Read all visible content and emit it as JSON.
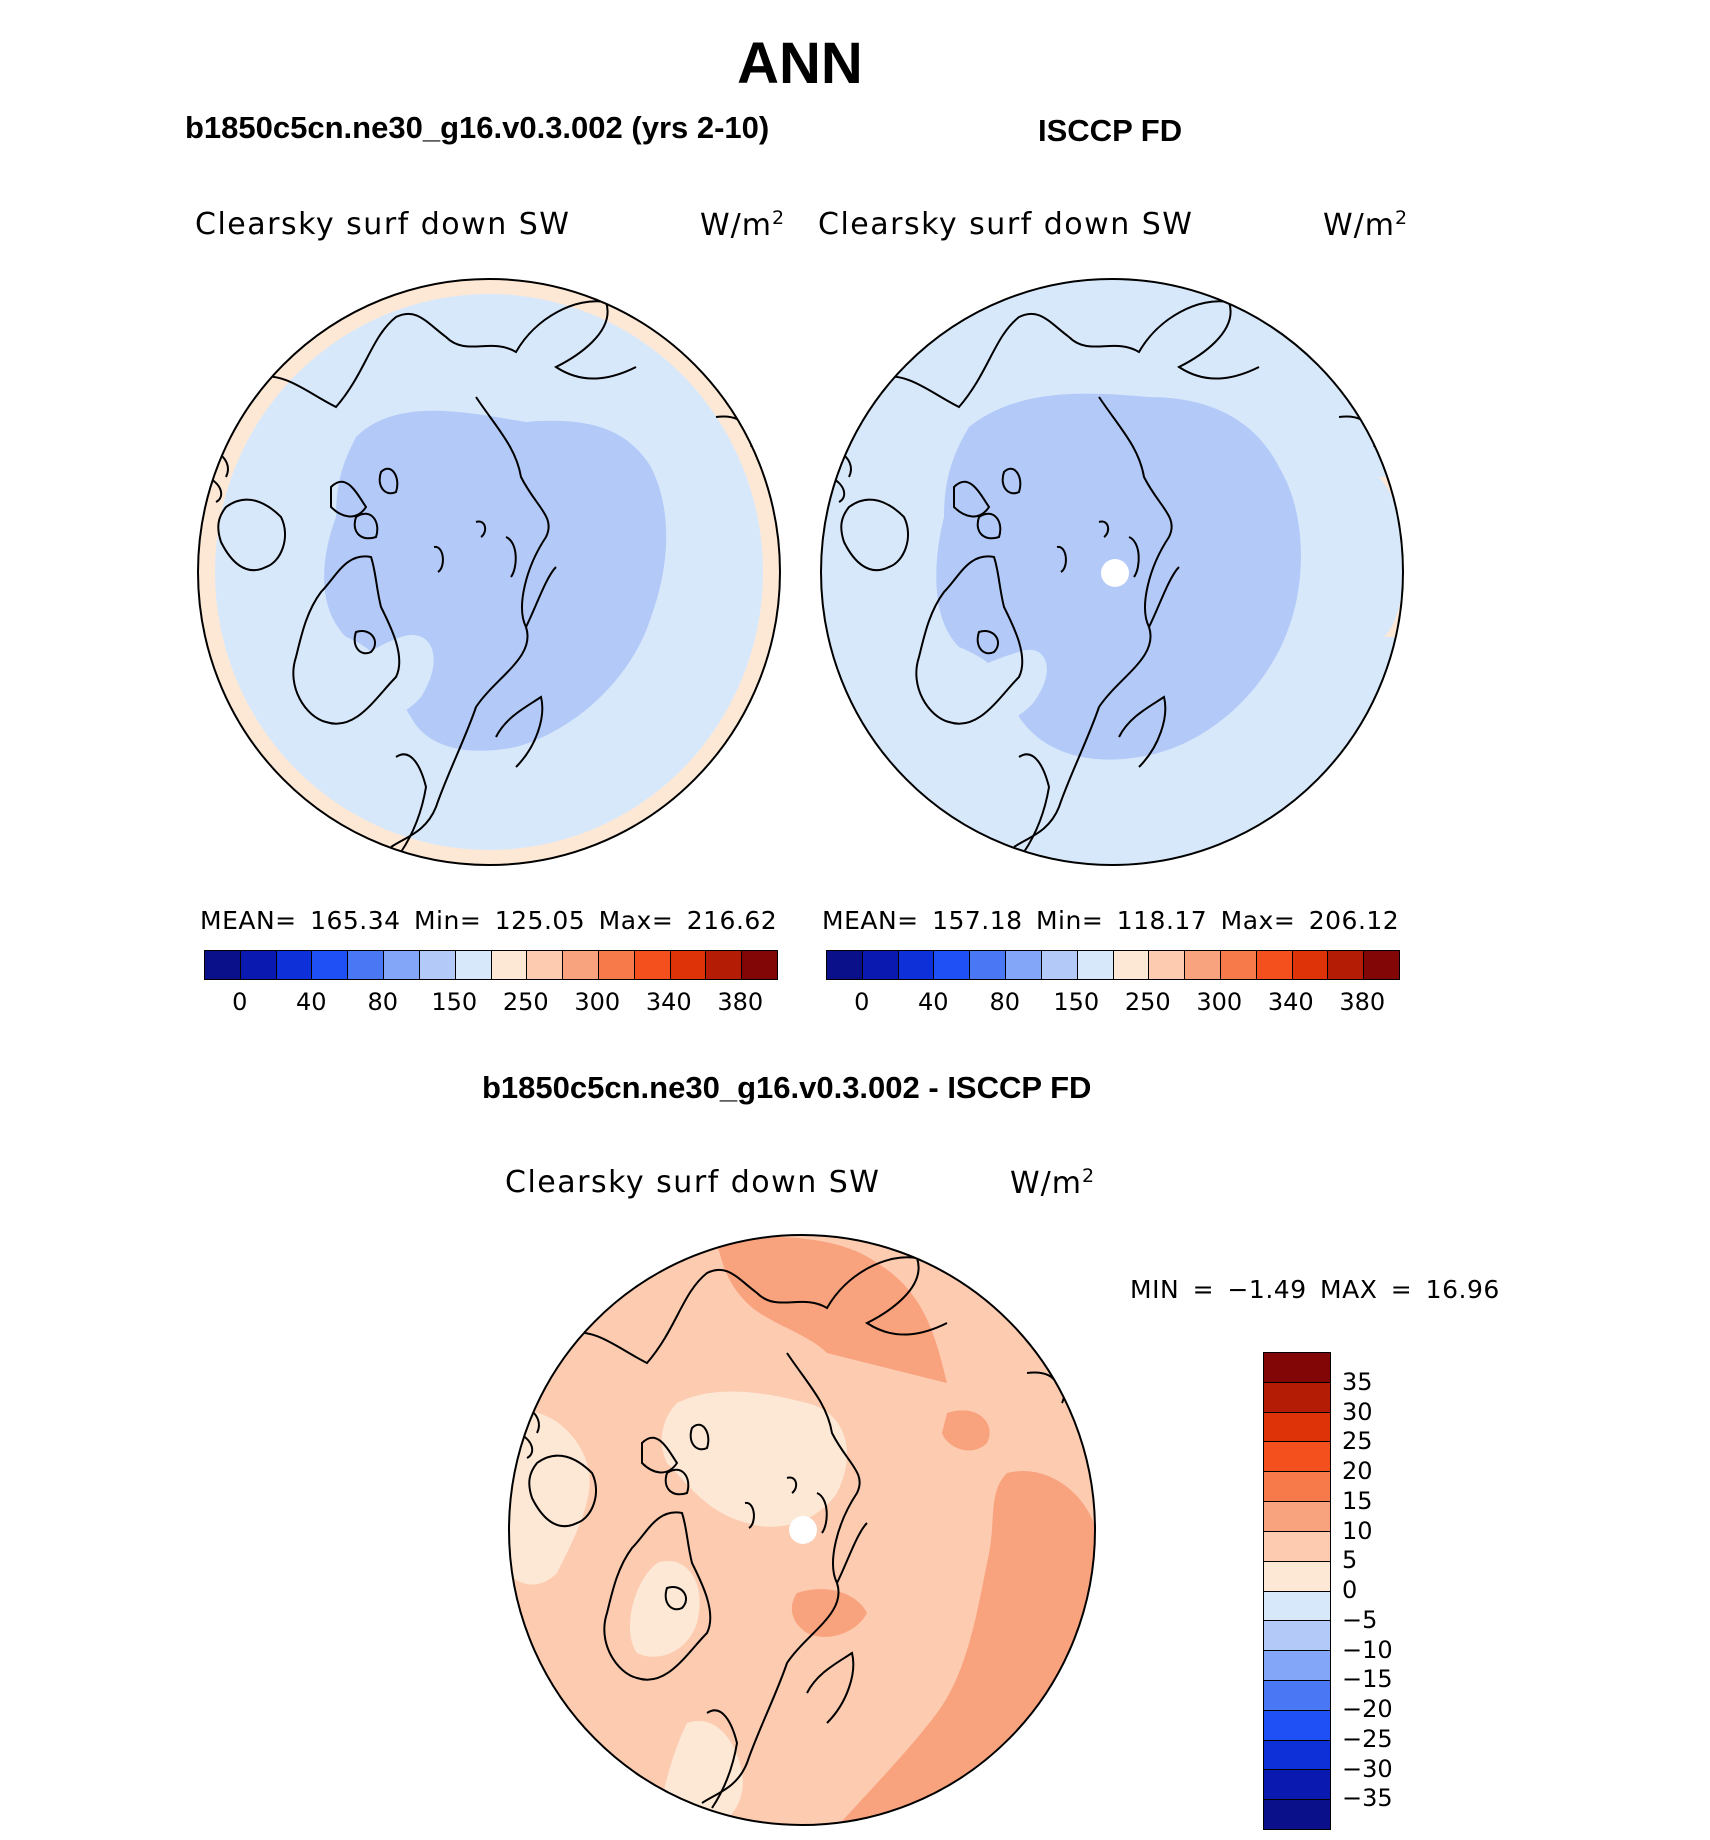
{
  "title": "ANN",
  "panels": [
    {
      "id": "model",
      "subtitle": "b1850c5cn.ne30_g16.v0.3.002 (yrs 2-10)",
      "field": "Clearsky surf down SW",
      "units_base": "W/m",
      "units_exp": "2",
      "stats": "MEAN= 165.34   Min= 125.05   Max= 216.62",
      "colorbar_labels": [
        "0",
        "40",
        "80",
        "150",
        "250",
        "300",
        "340",
        "380"
      ]
    },
    {
      "id": "obs",
      "subtitle": "ISCCP FD",
      "field": "Clearsky surf down SW",
      "units_base": "W/m",
      "units_exp": "2",
      "stats": "MEAN= 157.18   Min= 118.17   Max= 206.12",
      "colorbar_labels": [
        "0",
        "40",
        "80",
        "150",
        "250",
        "300",
        "340",
        "380"
      ]
    }
  ],
  "diff": {
    "subtitle": "b1850c5cn.ne30_g16.v0.3.002 - ISCCP FD",
    "field": "Clearsky surf down SW",
    "units_base": "W/m",
    "units_exp": "2",
    "stats": "MIN =   −1.49  MAX =   16.96",
    "colorbar_labels": [
      "35",
      "30",
      "25",
      "20",
      "15",
      "10",
      "5",
      "0",
      "−5",
      "−10",
      "−15",
      "−20",
      "−25",
      "−30",
      "−35"
    ]
  },
  "colors": {
    "abs_scale": [
      "#0a0f8a",
      "#0a1ab0",
      "#0d30d8",
      "#1e50f5",
      "#4a78f5",
      "#84a6f8",
      "#b3caf8",
      "#d8e8fb",
      "#fde8d6",
      "#fccbb0",
      "#f9a27e",
      "#f77a4a",
      "#f4501e",
      "#de3308",
      "#b51c05",
      "#820606"
    ],
    "diff_scale": [
      "#820606",
      "#b51c05",
      "#de3308",
      "#f4501e",
      "#f77a4a",
      "#f9a27e",
      "#fccbb0",
      "#fde8d6",
      "#d8e8fb",
      "#b3caf8",
      "#84a6f8",
      "#4a78f5",
      "#1e50f5",
      "#0d30d8",
      "#0a1ab0",
      "#0a0f8a"
    ],
    "pale_blue": "#d8e8fb",
    "mid_blue": "#b3caf8",
    "peach": "#fde8d6",
    "salmon": "#fccbb0",
    "orange": "#f9a27e"
  }
}
